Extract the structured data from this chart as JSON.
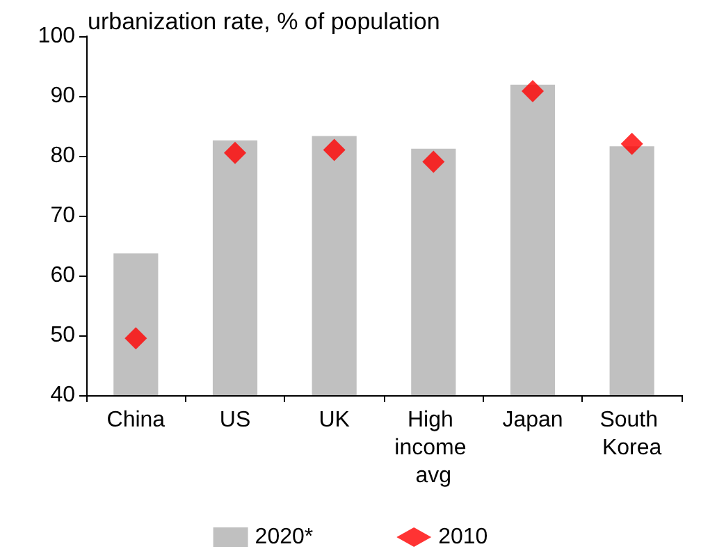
{
  "chart_data": {
    "type": "bar",
    "title": "urbanization rate, % of population",
    "categories": [
      "China",
      "US",
      "UK",
      "High income avg",
      "Japan",
      "South Korea"
    ],
    "series": [
      {
        "name": "2020*",
        "color": "#c0c0c0",
        "values": [
          63.7,
          82.6,
          83.3,
          81.2,
          91.9,
          81.6
        ]
      },
      {
        "name": "2010",
        "type": "scatter",
        "color": "#ff0000",
        "values": [
          49.5,
          80.5,
          81,
          79,
          90.8,
          82
        ]
      }
    ],
    "ylim": [
      40,
      100
    ],
    "yticks": [
      40,
      50,
      60,
      70,
      80,
      90,
      100
    ],
    "grid": false,
    "legend": "bottom",
    "marker": "diamond"
  }
}
